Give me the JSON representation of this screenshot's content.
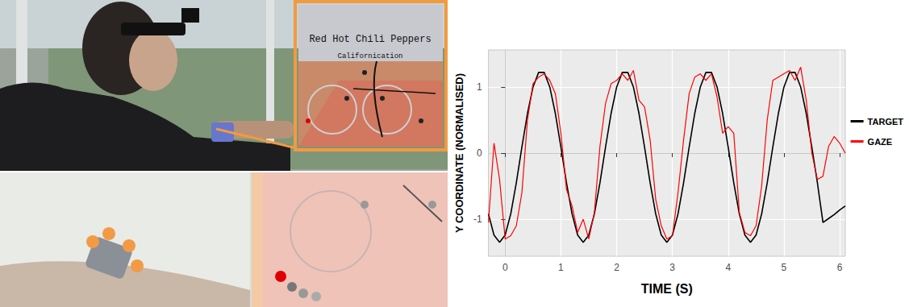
{
  "chart_data": {
    "type": "line",
    "x_label": "TIME (S)",
    "y_label": "Y COORDINATE (NORMALISED)",
    "x": [
      -0.3,
      -0.2,
      -0.1,
      0.0,
      0.1,
      0.2,
      0.3,
      0.4,
      0.5,
      0.6,
      0.7,
      0.8,
      0.9,
      1.0,
      1.1,
      1.2,
      1.3,
      1.4,
      1.5,
      1.6,
      1.7,
      1.8,
      1.9,
      2.0,
      2.1,
      2.2,
      2.3,
      2.4,
      2.5,
      2.6,
      2.7,
      2.8,
      2.9,
      3.0,
      3.1,
      3.2,
      3.3,
      3.4,
      3.5,
      3.6,
      3.7,
      3.8,
      3.9,
      4.0,
      4.1,
      4.2,
      4.3,
      4.4,
      4.5,
      4.6,
      4.7,
      4.8,
      4.9,
      5.0,
      5.1,
      5.2,
      5.3,
      5.4,
      5.5,
      5.6,
      5.7,
      5.8,
      5.9,
      6.0,
      6.1
    ],
    "series": [
      {
        "name": "TARGET",
        "color": "#000000",
        "values": [
          -0.92,
          -1.24,
          -1.35,
          -1.24,
          -0.92,
          -0.45,
          0.09,
          0.6,
          1.0,
          1.22,
          1.22,
          1.0,
          0.6,
          0.09,
          -0.45,
          -0.92,
          -1.24,
          -1.35,
          -1.24,
          -0.92,
          -0.45,
          0.09,
          0.6,
          1.0,
          1.22,
          1.22,
          1.0,
          0.6,
          0.09,
          -0.45,
          -0.92,
          -1.24,
          -1.35,
          -1.24,
          -0.92,
          -0.45,
          0.09,
          0.6,
          1.0,
          1.22,
          1.22,
          1.0,
          0.6,
          0.09,
          -0.45,
          -0.92,
          -1.24,
          -1.35,
          -1.24,
          -0.92,
          -0.45,
          0.09,
          0.6,
          1.0,
          1.22,
          1.22,
          1.0,
          0.6,
          0.09,
          -0.45,
          -1.05,
          -0.99,
          -0.93,
          -0.86,
          -0.8
        ]
      },
      {
        "name": "GAZE",
        "color": "#ff0000",
        "values": [
          -1.05,
          0.15,
          -0.4,
          -1.3,
          -1.25,
          -1.1,
          -0.6,
          0.5,
          1.05,
          1.15,
          1.2,
          1.1,
          0.9,
          0.3,
          -0.55,
          -0.8,
          -1.2,
          -1.0,
          -1.3,
          -0.9,
          0.1,
          0.75,
          1.05,
          1.1,
          1.2,
          1.1,
          1.25,
          0.8,
          0.7,
          0.2,
          -0.7,
          -1.1,
          -1.3,
          -1.25,
          -0.6,
          0.2,
          0.9,
          1.15,
          1.2,
          1.1,
          1.2,
          0.85,
          0.3,
          0.4,
          0.3,
          -0.9,
          -1.2,
          -1.25,
          -1.1,
          -0.5,
          0.5,
          1.1,
          1.15,
          1.2,
          1.25,
          1.1,
          1.3,
          0.8,
          0.0,
          -0.4,
          -0.35,
          0.1,
          0.25,
          0.15,
          0.0
        ]
      }
    ],
    "xlim": [
      -0.3,
      6.1
    ],
    "ylim": [
      -1.56,
      1.56
    ],
    "xticks": [
      0,
      1,
      2,
      3,
      4,
      5,
      6
    ],
    "yticks": [
      -1,
      0,
      1
    ],
    "grid": true,
    "legend": "right"
  },
  "photo": {
    "song_title": "Red Hot Chili Peppers",
    "song_subtitle": "Californication"
  }
}
